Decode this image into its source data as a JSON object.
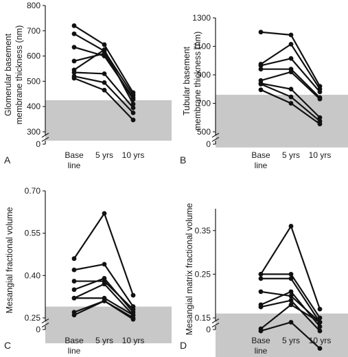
{
  "chart_data": [
    {
      "panel_label": "A",
      "type": "line",
      "ylabel_lines": [
        "Glomerular basement",
        "membrane thickness (nm)"
      ],
      "categories": [
        "Base line",
        "5 yrs",
        "10 yrs"
      ],
      "x_label_lines": [
        [
          "Base",
          "line"
        ],
        [
          "5 yrs"
        ],
        [
          "10 yrs"
        ]
      ],
      "ylim": [
        0,
        800
      ],
      "y_ticks": [
        0,
        300,
        400,
        500,
        600,
        700,
        800
      ],
      "y_tick_labels": [
        "0",
        "300",
        "400",
        "500",
        "600",
        "700",
        "800"
      ],
      "axis_break": "between 0 and 300",
      "normal_range": [
        265,
        425
      ],
      "normal_range_color": "#c8c8c8",
      "series": [
        {
          "values": [
            720,
            645,
            455
          ]
        },
        {
          "values": [
            688,
            620,
            445
          ]
        },
        {
          "values": [
            635,
            600,
            435
          ]
        },
        {
          "values": [
            580,
            610,
            428
          ]
        },
        {
          "values": [
            545,
            625,
            410
          ]
        },
        {
          "values": [
            535,
            530,
            395
          ]
        },
        {
          "values": [
            520,
            495,
            375
          ]
        },
        {
          "values": [
            512,
            465,
            347
          ]
        }
      ]
    },
    {
      "panel_label": "B",
      "type": "line",
      "ylabel_lines": [
        "Tubular basement",
        "membrane thickness (nm)"
      ],
      "categories": [
        "Base line",
        "5 yrs",
        "10 yrs"
      ],
      "x_label_lines": [
        [
          "Base",
          "line"
        ],
        [
          "5 yrs"
        ],
        [
          "10 yrs"
        ]
      ],
      "ylim": [
        0,
        1300
      ],
      "y_ticks": [
        0,
        500,
        700,
        900,
        1100,
        1300
      ],
      "y_tick_labels": [
        "0",
        "500",
        "700",
        "900",
        "1100",
        "1300"
      ],
      "axis_break": "between 0 and 500",
      "normal_range": [
        390,
        760
      ],
      "normal_range_color": "#c8c8c8",
      "series": [
        {
          "values": [
            1200,
            1180,
            820
          ]
        },
        {
          "values": [
            975,
            1115,
            800
          ]
        },
        {
          "values": [
            965,
            1015,
            780
          ]
        },
        {
          "values": [
            940,
            940,
            740
          ]
        },
        {
          "values": [
            860,
            920,
            730
          ]
        },
        {
          "values": [
            840,
            800,
            600
          ]
        },
        {
          "values": [
            835,
            745,
            575
          ]
        },
        {
          "values": [
            795,
            700,
            555
          ]
        }
      ]
    },
    {
      "panel_label": "C",
      "type": "line",
      "ylabel_lines": [
        "Mesangial fractional volume"
      ],
      "categories": [
        "Base line",
        "5 yrs",
        "10 yrs"
      ],
      "x_label_lines": [
        [
          "Base",
          "line"
        ],
        [
          "5 yrs"
        ],
        [
          "10 yrs"
        ]
      ],
      "ylim": [
        0,
        0.7
      ],
      "y_ticks": [
        0,
        0.25,
        0.4,
        0.55,
        0.7
      ],
      "y_tick_labels": [
        "0",
        "0.25",
        "0.40",
        "0.55",
        "0.70"
      ],
      "axis_break": "between 0 and 0.25",
      "normal_range": [
        0.16,
        0.29
      ],
      "normal_range_color": "#c8c8c8",
      "series": [
        {
          "values": [
            0.46,
            0.62,
            0.33
          ]
        },
        {
          "values": [
            0.42,
            0.44,
            0.29
          ]
        },
        {
          "values": [
            0.38,
            0.38,
            0.28
          ]
        },
        {
          "values": [
            0.35,
            0.39,
            0.27
          ]
        },
        {
          "values": [
            0.32,
            0.37,
            0.26
          ]
        },
        {
          "values": [
            0.32,
            0.32,
            0.26
          ]
        },
        {
          "values": [
            0.27,
            0.31,
            0.25
          ]
        },
        {
          "values": [
            0.26,
            0.31,
            0.245
          ]
        }
      ]
    },
    {
      "panel_label": "D",
      "type": "line",
      "ylabel_lines": [
        "Mesangial matrix fractional volume"
      ],
      "categories": [
        "Base line",
        "5 yrs",
        "10 yrs"
      ],
      "x_label_lines": [
        [
          "Base",
          "line"
        ],
        [
          "5 yrs"
        ],
        [
          "10 yrs"
        ]
      ],
      "ylim": [
        0,
        0.4
      ],
      "y_ticks": [
        0,
        0.15,
        0.25,
        0.35
      ],
      "y_tick_labels": [
        "0",
        "0.15",
        "0.25",
        "0.35"
      ],
      "axis_break": "between 0 and 0.15",
      "normal_range": [
        0.06,
        0.16
      ],
      "normal_range_color": "#c8c8c8",
      "series": [
        {
          "values": [
            0.25,
            0.36,
            0.17
          ]
        },
        {
          "values": [
            0.25,
            0.25,
            0.15
          ]
        },
        {
          "values": [
            0.24,
            0.24,
            0.14
          ]
        },
        {
          "values": [
            0.21,
            0.2,
            0.14
          ]
        },
        {
          "values": [
            0.18,
            0.21,
            0.13
          ]
        },
        {
          "values": [
            0.175,
            0.19,
            0.12
          ]
        },
        {
          "values": [
            0.125,
            0.18,
            0.14
          ]
        },
        {
          "values": [
            0.12,
            0.14,
            0.08
          ]
        }
      ]
    }
  ]
}
